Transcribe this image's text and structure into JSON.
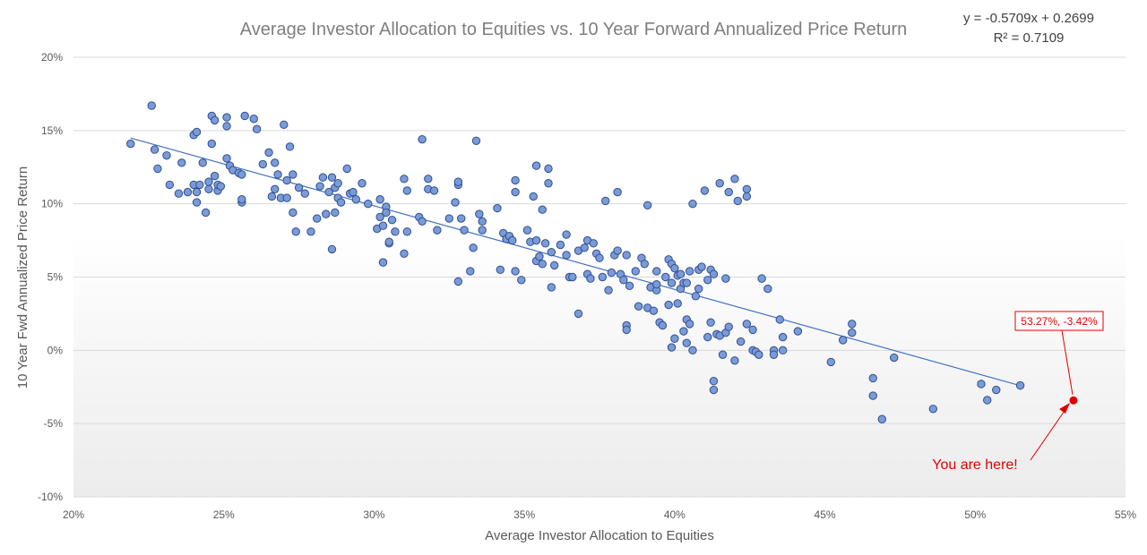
{
  "chart_data": {
    "type": "scatter",
    "title": "Average Investor Allocation to Equities vs. 10 Year Forward Annualized Price Return",
    "xlabel": "Average Investor Allocation to Equities",
    "ylabel": "10 Year Fwd Annualized Price Return",
    "xlim": [
      0.2,
      0.55
    ],
    "ylim": [
      -0.1,
      0.2
    ],
    "x_ticks": [
      0.2,
      0.25,
      0.3,
      0.35,
      0.4,
      0.45,
      0.5,
      0.55
    ],
    "x_tick_labels": [
      "20%",
      "25%",
      "30%",
      "35%",
      "40%",
      "45%",
      "50%",
      "55%"
    ],
    "y_ticks": [
      -0.1,
      -0.05,
      0.0,
      0.05,
      0.1,
      0.15,
      0.2
    ],
    "y_tick_labels": [
      "-10%",
      "-5%",
      "0%",
      "5%",
      "10%",
      "15%",
      "20%"
    ],
    "grid": "horizontal",
    "trendline": {
      "slope": -0.5709,
      "intercept": 0.2699,
      "x_range": [
        0.219,
        0.515
      ],
      "equation_label": "y = -0.5709x + 0.2699",
      "r2_label": "R² = 0.7109",
      "color": "#4472c4"
    },
    "marker_color": "#7b9ad8",
    "marker_edge": "#2f4f8f",
    "highlight": {
      "x": 0.5327,
      "y": -0.0342,
      "label": "53.27%, -3.42%",
      "annotation": "You are here!",
      "color": "#e00000"
    },
    "points": [
      [
        0.219,
        0.141
      ],
      [
        0.226,
        0.167
      ],
      [
        0.227,
        0.137
      ],
      [
        0.228,
        0.124
      ],
      [
        0.231,
        0.133
      ],
      [
        0.232,
        0.113
      ],
      [
        0.235,
        0.107
      ],
      [
        0.236,
        0.128
      ],
      [
        0.238,
        0.108
      ],
      [
        0.24,
        0.113
      ],
      [
        0.24,
        0.147
      ],
      [
        0.241,
        0.149
      ],
      [
        0.241,
        0.108
      ],
      [
        0.241,
        0.101
      ],
      [
        0.242,
        0.113
      ],
      [
        0.243,
        0.128
      ],
      [
        0.244,
        0.094
      ],
      [
        0.245,
        0.115
      ],
      [
        0.245,
        0.11
      ],
      [
        0.246,
        0.141
      ],
      [
        0.246,
        0.16
      ],
      [
        0.247,
        0.157
      ],
      [
        0.247,
        0.119
      ],
      [
        0.248,
        0.109
      ],
      [
        0.248,
        0.113
      ],
      [
        0.249,
        0.112
      ],
      [
        0.251,
        0.131
      ],
      [
        0.251,
        0.159
      ],
      [
        0.251,
        0.153
      ],
      [
        0.252,
        0.126
      ],
      [
        0.253,
        0.123
      ],
      [
        0.255,
        0.121
      ],
      [
        0.256,
        0.12
      ],
      [
        0.256,
        0.101
      ],
      [
        0.256,
        0.103
      ],
      [
        0.257,
        0.16
      ],
      [
        0.26,
        0.158
      ],
      [
        0.261,
        0.151
      ],
      [
        0.263,
        0.127
      ],
      [
        0.265,
        0.135
      ],
      [
        0.266,
        0.105
      ],
      [
        0.267,
        0.11
      ],
      [
        0.267,
        0.128
      ],
      [
        0.268,
        0.12
      ],
      [
        0.269,
        0.104
      ],
      [
        0.27,
        0.154
      ],
      [
        0.271,
        0.104
      ],
      [
        0.271,
        0.116
      ],
      [
        0.272,
        0.139
      ],
      [
        0.273,
        0.12
      ],
      [
        0.273,
        0.094
      ],
      [
        0.274,
        0.081
      ],
      [
        0.275,
        0.111
      ],
      [
        0.277,
        0.107
      ],
      [
        0.279,
        0.081
      ],
      [
        0.281,
        0.09
      ],
      [
        0.282,
        0.112
      ],
      [
        0.283,
        0.118
      ],
      [
        0.284,
        0.093
      ],
      [
        0.285,
        0.108
      ],
      [
        0.286,
        0.069
      ],
      [
        0.286,
        0.118
      ],
      [
        0.287,
        0.094
      ],
      [
        0.287,
        0.111
      ],
      [
        0.288,
        0.104
      ],
      [
        0.288,
        0.114
      ],
      [
        0.289,
        0.101
      ],
      [
        0.291,
        0.124
      ],
      [
        0.292,
        0.107
      ],
      [
        0.293,
        0.108
      ],
      [
        0.294,
        0.103
      ],
      [
        0.296,
        0.114
      ],
      [
        0.298,
        0.1
      ],
      [
        0.301,
        0.083
      ],
      [
        0.302,
        0.091
      ],
      [
        0.302,
        0.103
      ],
      [
        0.303,
        0.06
      ],
      [
        0.303,
        0.085
      ],
      [
        0.304,
        0.098
      ],
      [
        0.304,
        0.094
      ],
      [
        0.305,
        0.073
      ],
      [
        0.305,
        0.074
      ],
      [
        0.306,
        0.089
      ],
      [
        0.307,
        0.081
      ],
      [
        0.31,
        0.117
      ],
      [
        0.31,
        0.066
      ],
      [
        0.311,
        0.109
      ],
      [
        0.311,
        0.081
      ],
      [
        0.315,
        0.091
      ],
      [
        0.316,
        0.144
      ],
      [
        0.316,
        0.088
      ],
      [
        0.318,
        0.11
      ],
      [
        0.318,
        0.117
      ],
      [
        0.32,
        0.109
      ],
      [
        0.321,
        0.082
      ],
      [
        0.325,
        0.09
      ],
      [
        0.327,
        0.101
      ],
      [
        0.328,
        0.113
      ],
      [
        0.328,
        0.115
      ],
      [
        0.328,
        0.047
      ],
      [
        0.329,
        0.09
      ],
      [
        0.33,
        0.082
      ],
      [
        0.332,
        0.054
      ],
      [
        0.333,
        0.07
      ],
      [
        0.334,
        0.143
      ],
      [
        0.335,
        0.093
      ],
      [
        0.336,
        0.088
      ],
      [
        0.336,
        0.082
      ],
      [
        0.341,
        0.097
      ],
      [
        0.342,
        0.055
      ],
      [
        0.343,
        0.08
      ],
      [
        0.344,
        0.076
      ],
      [
        0.345,
        0.078
      ],
      [
        0.346,
        0.075
      ],
      [
        0.347,
        0.054
      ],
      [
        0.347,
        0.116
      ],
      [
        0.347,
        0.108
      ],
      [
        0.349,
        0.048
      ],
      [
        0.351,
        0.082
      ],
      [
        0.352,
        0.074
      ],
      [
        0.353,
        0.105
      ],
      [
        0.354,
        0.126
      ],
      [
        0.354,
        0.061
      ],
      [
        0.354,
        0.075
      ],
      [
        0.355,
        0.064
      ],
      [
        0.356,
        0.096
      ],
      [
        0.356,
        0.059
      ],
      [
        0.357,
        0.073
      ],
      [
        0.358,
        0.124
      ],
      [
        0.358,
        0.114
      ],
      [
        0.359,
        0.043
      ],
      [
        0.359,
        0.067
      ],
      [
        0.36,
        0.058
      ],
      [
        0.362,
        0.072
      ],
      [
        0.364,
        0.065
      ],
      [
        0.364,
        0.079
      ],
      [
        0.365,
        0.05
      ],
      [
        0.366,
        0.05
      ],
      [
        0.368,
        0.025
      ],
      [
        0.368,
        0.068
      ],
      [
        0.37,
        0.07
      ],
      [
        0.371,
        0.075
      ],
      [
        0.371,
        0.052
      ],
      [
        0.372,
        0.049
      ],
      [
        0.373,
        0.073
      ],
      [
        0.374,
        0.066
      ],
      [
        0.375,
        0.063
      ],
      [
        0.376,
        0.05
      ],
      [
        0.377,
        0.102
      ],
      [
        0.378,
        0.041
      ],
      [
        0.379,
        0.053
      ],
      [
        0.38,
        0.065
      ],
      [
        0.381,
        0.068
      ],
      [
        0.381,
        0.108
      ],
      [
        0.382,
        0.052
      ],
      [
        0.383,
        0.048
      ],
      [
        0.384,
        0.017
      ],
      [
        0.384,
        0.014
      ],
      [
        0.384,
        0.065
      ],
      [
        0.385,
        0.044
      ],
      [
        0.387,
        0.054
      ],
      [
        0.388,
        0.03
      ],
      [
        0.389,
        0.063
      ],
      [
        0.39,
        0.059
      ],
      [
        0.391,
        0.099
      ],
      [
        0.391,
        0.029
      ],
      [
        0.392,
        0.043
      ],
      [
        0.393,
        0.027
      ],
      [
        0.394,
        0.041
      ],
      [
        0.394,
        0.054
      ],
      [
        0.394,
        0.045
      ],
      [
        0.395,
        0.019
      ],
      [
        0.396,
        0.017
      ],
      [
        0.397,
        0.05
      ],
      [
        0.398,
        0.031
      ],
      [
        0.398,
        0.062
      ],
      [
        0.399,
        0.046
      ],
      [
        0.399,
        0.059
      ],
      [
        0.399,
        0.002
      ],
      [
        0.4,
        0.056
      ],
      [
        0.4,
        0.008
      ],
      [
        0.401,
        0.032
      ],
      [
        0.401,
        0.051
      ],
      [
        0.402,
        0.042
      ],
      [
        0.402,
        0.052
      ],
      [
        0.403,
        0.046
      ],
      [
        0.403,
        0.013
      ],
      [
        0.404,
        0.021
      ],
      [
        0.404,
        0.046
      ],
      [
        0.404,
        0.005
      ],
      [
        0.405,
        0.018
      ],
      [
        0.405,
        0.054
      ],
      [
        0.406,
        0.1
      ],
      [
        0.406,
        0.0
      ],
      [
        0.407,
        0.037
      ],
      [
        0.408,
        0.055
      ],
      [
        0.408,
        0.042
      ],
      [
        0.409,
        0.057
      ],
      [
        0.41,
        0.109
      ],
      [
        0.411,
        0.009
      ],
      [
        0.411,
        0.048
      ],
      [
        0.412,
        0.055
      ],
      [
        0.412,
        0.019
      ],
      [
        0.413,
        -0.021
      ],
      [
        0.413,
        -0.027
      ],
      [
        0.413,
        0.052
      ],
      [
        0.414,
        0.011
      ],
      [
        0.415,
        0.01
      ],
      [
        0.415,
        0.114
      ],
      [
        0.416,
        -0.003
      ],
      [
        0.417,
        0.012
      ],
      [
        0.417,
        0.049
      ],
      [
        0.418,
        0.016
      ],
      [
        0.418,
        0.108
      ],
      [
        0.42,
        0.117
      ],
      [
        0.42,
        -0.007
      ],
      [
        0.421,
        0.102
      ],
      [
        0.422,
        0.006
      ],
      [
        0.424,
        0.11
      ],
      [
        0.424,
        0.105
      ],
      [
        0.424,
        0.018
      ],
      [
        0.426,
        0.014
      ],
      [
        0.426,
        0.0
      ],
      [
        0.427,
        -0.001
      ],
      [
        0.428,
        -0.003
      ],
      [
        0.429,
        0.049
      ],
      [
        0.431,
        0.042
      ],
      [
        0.433,
        0.0
      ],
      [
        0.433,
        -0.003
      ],
      [
        0.435,
        0.021
      ],
      [
        0.436,
        0.009
      ],
      [
        0.436,
        0.0
      ],
      [
        0.441,
        0.013
      ],
      [
        0.452,
        -0.008
      ],
      [
        0.456,
        0.007
      ],
      [
        0.459,
        0.018
      ],
      [
        0.459,
        0.012
      ],
      [
        0.466,
        -0.019
      ],
      [
        0.466,
        -0.031
      ],
      [
        0.469,
        -0.047
      ],
      [
        0.473,
        -0.005
      ],
      [
        0.486,
        -0.04
      ],
      [
        0.502,
        -0.023
      ],
      [
        0.504,
        -0.034
      ],
      [
        0.507,
        -0.027
      ],
      [
        0.515,
        -0.024
      ]
    ]
  }
}
